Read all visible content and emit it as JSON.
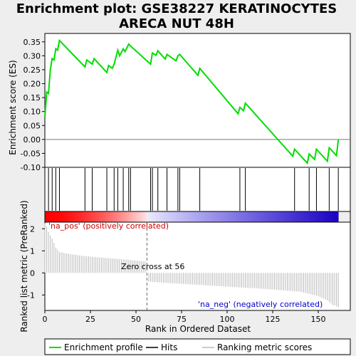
{
  "chart_data": {
    "type": "line",
    "title_line1": "Enrichment plot: GSE38227 KERATINOCYTES",
    "title_line2": "ARECA NUT 48H",
    "xlabel": "Rank in Ordered Dataset",
    "es_panel": {
      "ylabel": "Enrichment score (ES)",
      "ylim": [
        -0.1,
        0.38
      ],
      "yticks": [
        "0.35",
        "0.30",
        "0.25",
        "0.20",
        "0.15",
        "0.10",
        "0.05",
        "0.00",
        "-0.05",
        "-0.10"
      ],
      "ytick_values": [
        0.35,
        0.3,
        0.25,
        0.2,
        0.15,
        0.1,
        0.05,
        0.0,
        -0.05,
        -0.1
      ],
      "x": [
        0,
        1,
        2,
        3,
        4,
        5,
        6,
        7,
        8,
        22,
        23,
        26,
        27,
        34,
        35,
        37,
        38,
        40,
        41,
        43,
        44,
        46,
        47,
        58,
        59,
        61,
        62,
        66,
        67,
        72,
        73,
        74,
        84,
        85,
        106,
        107,
        109,
        110,
        136,
        137,
        144,
        145,
        148,
        149,
        155,
        156,
        160,
        161
      ],
      "y": [
        0.08,
        0.17,
        0.165,
        0.25,
        0.29,
        0.285,
        0.325,
        0.32,
        0.355,
        0.26,
        0.285,
        0.27,
        0.29,
        0.24,
        0.265,
        0.255,
        0.27,
        0.32,
        0.3,
        0.325,
        0.315,
        0.342,
        0.335,
        0.27,
        0.31,
        0.302,
        0.318,
        0.288,
        0.305,
        0.282,
        0.3,
        0.305,
        0.23,
        0.255,
        0.092,
        0.115,
        0.103,
        0.13,
        -0.06,
        -0.035,
        -0.085,
        -0.052,
        -0.072,
        -0.035,
        -0.078,
        -0.03,
        -0.058,
        0.0
      ],
      "zero_line": 0.0
    },
    "hits": [
      0,
      2,
      4,
      6,
      8,
      22,
      26,
      34,
      38,
      40,
      43,
      46,
      47,
      58,
      59,
      62,
      67,
      73,
      74,
      85,
      107,
      110,
      137,
      145,
      149,
      156,
      161
    ],
    "rank_panel": {
      "ylabel": "Ranked list metric (PreRanked)",
      "ylim": [
        -1.7,
        2.3
      ],
      "yticks": [
        "2",
        "1",
        "0",
        "-1"
      ],
      "ytick_values": [
        2,
        1,
        0,
        -1
      ],
      "xticks": [
        "0",
        "25",
        "50",
        "75",
        "100",
        "125",
        "150"
      ],
      "xtick_values": [
        0,
        25,
        50,
        75,
        100,
        125,
        150
      ],
      "n_genes": 161,
      "zero_cross": 56,
      "zero_cross_label": "Zero cross at 56",
      "pos_label": "'na_pos' (positively correlated)",
      "neg_label": "'na_neg' (negatively correlated)",
      "metric_profile": [
        [
          0,
          2.25
        ],
        [
          1,
          2.1
        ],
        [
          2,
          1.85
        ],
        [
          3,
          1.7
        ],
        [
          4,
          1.55
        ],
        [
          6,
          1.15
        ],
        [
          8,
          0.95
        ],
        [
          12,
          0.88
        ],
        [
          20,
          0.78
        ],
        [
          30,
          0.7
        ],
        [
          45,
          0.6
        ],
        [
          55,
          0.52
        ],
        [
          56,
          0.0
        ],
        [
          57,
          -0.4
        ],
        [
          80,
          -0.52
        ],
        [
          100,
          -0.62
        ],
        [
          120,
          -0.72
        ],
        [
          140,
          -0.85
        ],
        [
          150,
          -1.05
        ],
        [
          155,
          -1.25
        ],
        [
          158,
          -1.45
        ],
        [
          161,
          -1.55
        ]
      ]
    },
    "legend": [
      "Enrichment profile",
      "Hits",
      "Ranking metric scores"
    ],
    "colors": {
      "enrichment_line": "#00dd00",
      "hits": "#000000",
      "metric_bars": "#bbbbbb",
      "pos_text": "#cc0000",
      "neg_text": "#0000cc",
      "heat_pos": "#ff0000",
      "heat_neg": "#0000ff"
    }
  }
}
